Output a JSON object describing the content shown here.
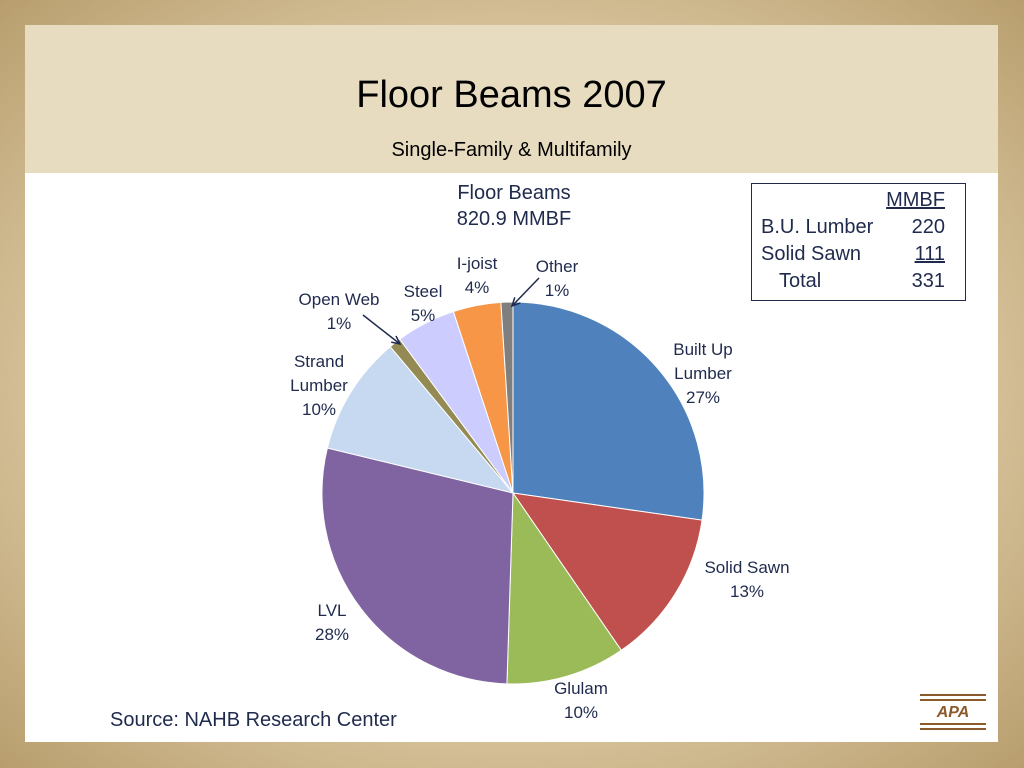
{
  "slide": {
    "title": "Floor Beams 2007",
    "subtitle": "Single-Family & Multifamily",
    "source": "Source:  NAHB Research Center",
    "logo_text": "APA"
  },
  "table": {
    "header": "MMBF",
    "rows": [
      {
        "label": "B.U. Lumber",
        "value": "220"
      },
      {
        "label": "Solid Sawn",
        "value": "111"
      },
      {
        "label": "Total",
        "value": "331"
      }
    ]
  },
  "chart_data": {
    "type": "pie",
    "title_lines": [
      "Floor Beams",
      "820.9 MMBF"
    ],
    "slices": [
      {
        "name": "Built Up Lumber",
        "label_lines": [
          "Built Up",
          "Lumber"
        ],
        "value": 27,
        "pct_label": "27%",
        "color": "#4f81bd"
      },
      {
        "name": "Solid Sawn",
        "label_lines": [
          "Solid Sawn"
        ],
        "value": 13,
        "pct_label": "13%",
        "color": "#c0504d"
      },
      {
        "name": "Glulam",
        "label_lines": [
          "Glulam"
        ],
        "value": 10,
        "pct_label": "10%",
        "color": "#9bbb59"
      },
      {
        "name": "LVL",
        "label_lines": [
          "LVL"
        ],
        "value": 28,
        "pct_label": "28%",
        "color": "#8064a2"
      },
      {
        "name": "Strand Lumber",
        "label_lines": [
          "Strand",
          "Lumber"
        ],
        "value": 10,
        "pct_label": "10%",
        "color": "#c6d9f0"
      },
      {
        "name": "Open Web",
        "label_lines": [
          "Open Web"
        ],
        "value": 1,
        "pct_label": "1%",
        "color": "#948a54"
      },
      {
        "name": "Steel",
        "label_lines": [
          "Steel"
        ],
        "value": 5,
        "pct_label": "5%",
        "color": "#ccccff"
      },
      {
        "name": "I-joist",
        "label_lines": [
          "I-joist"
        ],
        "value": 4,
        "pct_label": "4%",
        "color": "#f79646"
      },
      {
        "name": "Other",
        "label_lines": [
          "Other"
        ],
        "value": 1,
        "pct_label": "1%",
        "color": "#7f7f7f"
      }
    ]
  }
}
